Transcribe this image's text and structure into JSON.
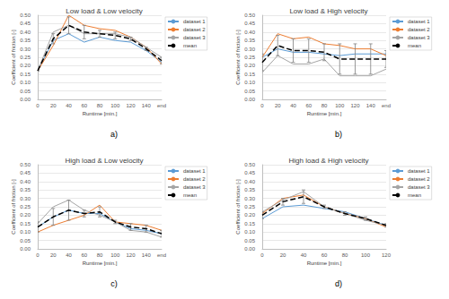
{
  "chart_data": [
    {
      "type": "line",
      "title": "Low load & Low velocity",
      "caption": "a)",
      "x_label": "Runtime [min.]",
      "y_label": "Coefficient of friction [-]",
      "categories": [
        "0",
        "20",
        "40",
        "60",
        "80",
        "100",
        "120",
        "140",
        "end"
      ],
      "ylim": [
        0,
        0.5
      ],
      "yticks": [
        {
          "value": 0,
          "label": "0.00"
        },
        {
          "value": 0.05,
          "label": "0.05"
        },
        {
          "value": 0.1,
          "label": "0.10"
        },
        {
          "value": 0.15,
          "label": "0.15"
        },
        {
          "value": 0.2,
          "label": "0.20"
        },
        {
          "value": 0.25,
          "label": "0.25"
        },
        {
          "value": 0.3,
          "label": "0.30"
        },
        {
          "value": 0.35,
          "label": "0.35"
        },
        {
          "value": 0.4,
          "label": "0.40"
        },
        {
          "value": 0.45,
          "label": "0.45"
        },
        {
          "value": 0.5,
          "label": "0.50"
        }
      ],
      "grid": true,
      "legend": "right",
      "series": [
        {
          "name": "dataset 1",
          "color": "#5b9bd5",
          "line_style": "solid",
          "values": [
            0.17,
            0.35,
            0.39,
            0.34,
            0.37,
            0.35,
            0.34,
            0.29,
            0.22
          ]
        },
        {
          "name": "dataset 2",
          "color": "#ed7d31",
          "line_style": "solid",
          "values": [
            0.17,
            0.32,
            0.5,
            0.44,
            0.42,
            0.41,
            0.37,
            0.31,
            0.21
          ]
        },
        {
          "name": "dataset 3",
          "color": "#a5a5a5",
          "line_style": "solid",
          "values": [
            0.17,
            0.4,
            0.44,
            0.39,
            0.39,
            0.39,
            0.37,
            0.31,
            0.25
          ]
        },
        {
          "name": "mean",
          "color": "#000000",
          "line_style": "dashed",
          "values": [
            0.17,
            0.36,
            0.44,
            0.4,
            0.39,
            0.38,
            0.36,
            0.3,
            0.23
          ],
          "error": [
            0.0,
            0.03,
            0.05,
            0.04,
            0.02,
            0.02,
            0.01,
            0.01,
            0.02
          ]
        }
      ]
    },
    {
      "type": "line",
      "title": "Low load & High velocity",
      "caption": "b)",
      "x_label": "Runtime [min.]",
      "y_label": "Coefficient of friction [-]",
      "categories": [
        "0",
        "20",
        "40",
        "60",
        "80",
        "100",
        "120",
        "140",
        "end"
      ],
      "ylim": [
        0,
        0.5
      ],
      "yticks": [
        {
          "value": 0,
          "label": "0.00"
        },
        {
          "value": 0.05,
          "label": "0.05"
        },
        {
          "value": 0.1,
          "label": "0.10"
        },
        {
          "value": 0.15,
          "label": "0.15"
        },
        {
          "value": 0.2,
          "label": "0.20"
        },
        {
          "value": 0.25,
          "label": "0.25"
        },
        {
          "value": 0.3,
          "label": "0.30"
        },
        {
          "value": 0.35,
          "label": "0.35"
        },
        {
          "value": 0.4,
          "label": "0.40"
        },
        {
          "value": 0.45,
          "label": "0.45"
        },
        {
          "value": 0.5,
          "label": "0.50"
        }
      ],
      "grid": true,
      "legend": "right",
      "series": [
        {
          "name": "dataset 1",
          "color": "#5b9bd5",
          "line_style": "solid",
          "values": [
            0.25,
            0.3,
            0.28,
            0.28,
            0.27,
            0.26,
            0.27,
            0.27,
            0.27
          ]
        },
        {
          "name": "dataset 2",
          "color": "#ed7d31",
          "line_style": "solid",
          "values": [
            0.25,
            0.39,
            0.36,
            0.37,
            0.33,
            0.32,
            0.3,
            0.3,
            0.26
          ]
        },
        {
          "name": "dataset 3",
          "color": "#a5a5a5",
          "line_style": "solid",
          "values": [
            0.16,
            0.26,
            0.21,
            0.21,
            0.24,
            0.14,
            0.14,
            0.14,
            0.18
          ]
        },
        {
          "name": "mean",
          "color": "#000000",
          "line_style": "dashed",
          "values": [
            0.22,
            0.32,
            0.29,
            0.29,
            0.28,
            0.24,
            0.24,
            0.24,
            0.24
          ],
          "error": [
            0.05,
            0.06,
            0.07,
            0.07,
            0.05,
            0.09,
            0.09,
            0.09,
            0.05
          ]
        }
      ]
    },
    {
      "type": "line",
      "title": "High load & Low velocity",
      "caption": "c)",
      "x_label": "Runtime [min.]",
      "y_label": "Coefficient of friction [-]",
      "categories": [
        "0",
        "20",
        "40",
        "60",
        "80",
        "100",
        "120",
        "140",
        "end"
      ],
      "ylim": [
        0,
        0.5
      ],
      "yticks": [
        {
          "value": 0,
          "label": "0.00"
        },
        {
          "value": 0.05,
          "label": "0.05"
        },
        {
          "value": 0.1,
          "label": "0.10"
        },
        {
          "value": 0.15,
          "label": "0.15"
        },
        {
          "value": 0.2,
          "label": "0.20"
        },
        {
          "value": 0.25,
          "label": "0.25"
        },
        {
          "value": 0.3,
          "label": "0.30"
        },
        {
          "value": 0.35,
          "label": "0.35"
        },
        {
          "value": 0.4,
          "label": "0.40"
        },
        {
          "value": 0.45,
          "label": "0.45"
        },
        {
          "value": 0.5,
          "label": "0.50"
        }
      ],
      "grid": true,
      "legend": "right",
      "series": [
        {
          "name": "dataset 1",
          "color": "#5b9bd5",
          "line_style": "solid",
          "values": [
            0.13,
            0.19,
            0.23,
            0.21,
            0.21,
            0.16,
            0.12,
            0.11,
            0.09
          ]
        },
        {
          "name": "dataset 2",
          "color": "#ed7d31",
          "line_style": "solid",
          "values": [
            0.1,
            0.14,
            0.17,
            0.2,
            0.26,
            0.16,
            0.15,
            0.14,
            0.11
          ]
        },
        {
          "name": "dataset 3",
          "color": "#a5a5a5",
          "line_style": "solid",
          "values": [
            0.15,
            0.25,
            0.29,
            0.23,
            0.2,
            0.16,
            0.11,
            0.1,
            0.07
          ]
        },
        {
          "name": "mean",
          "color": "#000000",
          "line_style": "dashed",
          "values": [
            0.13,
            0.19,
            0.23,
            0.21,
            0.22,
            0.16,
            0.13,
            0.12,
            0.09
          ],
          "error": [
            0.03,
            0.05,
            0.06,
            0.02,
            0.03,
            0.01,
            0.02,
            0.02,
            0.02
          ]
        }
      ]
    },
    {
      "type": "line",
      "title": "High load & High velocity",
      "caption": "d)",
      "x_label": "Runtime [min.]",
      "y_label": "Coefficient of friction [-]",
      "categories": [
        "0",
        "20",
        "40",
        "60",
        "80",
        "100",
        "120"
      ],
      "ylim": [
        0,
        0.5
      ],
      "yticks": [
        {
          "value": 0,
          "label": "0.00"
        },
        {
          "value": 0.05,
          "label": "0.05"
        },
        {
          "value": 0.1,
          "label": "0.10"
        },
        {
          "value": 0.15,
          "label": "0.15"
        },
        {
          "value": 0.2,
          "label": "0.20"
        },
        {
          "value": 0.25,
          "label": "0.25"
        },
        {
          "value": 0.3,
          "label": "0.30"
        },
        {
          "value": 0.35,
          "label": "0.35"
        },
        {
          "value": 0.4,
          "label": "0.40"
        },
        {
          "value": 0.45,
          "label": "0.45"
        },
        {
          "value": 0.5,
          "label": "0.50"
        }
      ],
      "grid": true,
      "legend": "right",
      "series": [
        {
          "name": "dataset 1",
          "color": "#5b9bd5",
          "line_style": "solid",
          "values": [
            0.18,
            0.25,
            0.26,
            0.24,
            0.22,
            0.18,
            0.14
          ]
        },
        {
          "name": "dataset 2",
          "color": "#ed7d31",
          "line_style": "solid",
          "values": [
            0.21,
            0.3,
            0.32,
            0.25,
            0.21,
            0.18,
            0.13
          ]
        },
        {
          "name": "dataset 3",
          "color": "#a5a5a5",
          "line_style": "solid",
          "values": [
            0.22,
            0.29,
            0.34,
            0.25,
            0.21,
            0.17,
            0.14
          ]
        },
        {
          "name": "mean",
          "color": "#000000",
          "line_style": "dashed",
          "values": [
            0.2,
            0.28,
            0.31,
            0.25,
            0.21,
            0.18,
            0.14
          ],
          "error": [
            0.02,
            0.02,
            0.04,
            0.01,
            0.01,
            0.01,
            0.01
          ]
        }
      ]
    }
  ]
}
